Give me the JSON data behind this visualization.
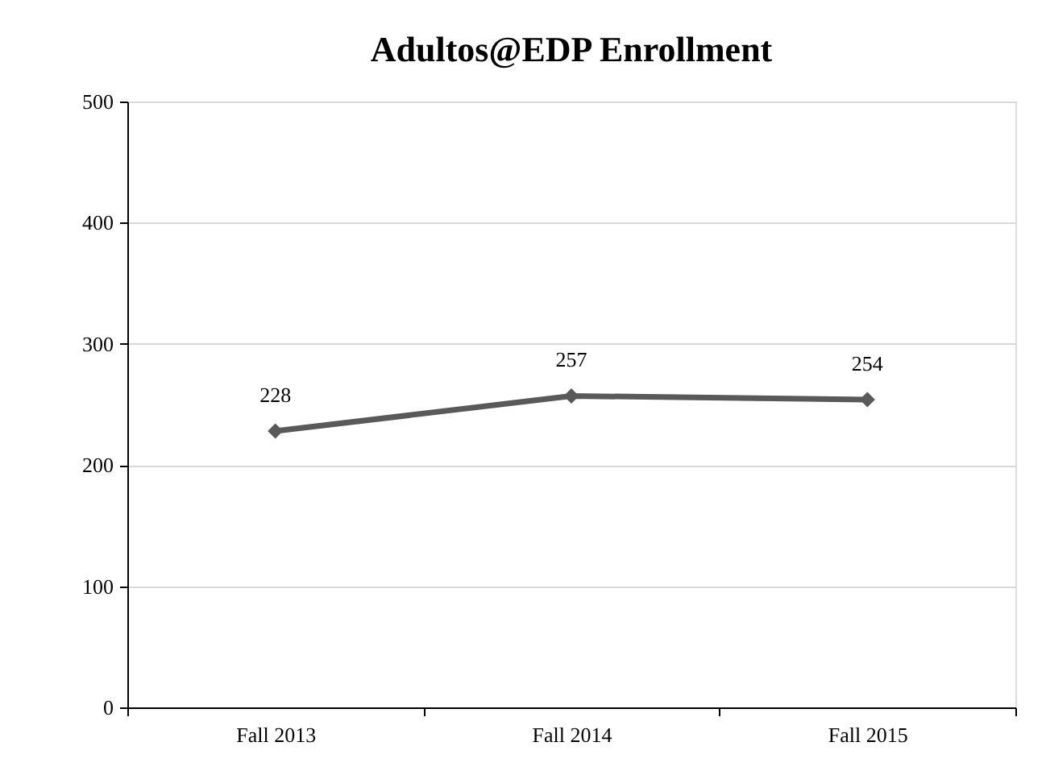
{
  "chart_data": {
    "type": "line",
    "title": "Adultos@EDP Enrollment",
    "categories": [
      "Fall 2013",
      "Fall 2014",
      "Fall 2015"
    ],
    "series": [
      {
        "color": "#595959",
        "values": [
          228,
          257,
          254
        ]
      }
    ],
    "ylim": [
      0,
      500
    ],
    "yticks": [
      0,
      100,
      200,
      300,
      400,
      500
    ],
    "grid": "y",
    "marker": "diamond",
    "line_style": "solid",
    "data_labels": true
  }
}
